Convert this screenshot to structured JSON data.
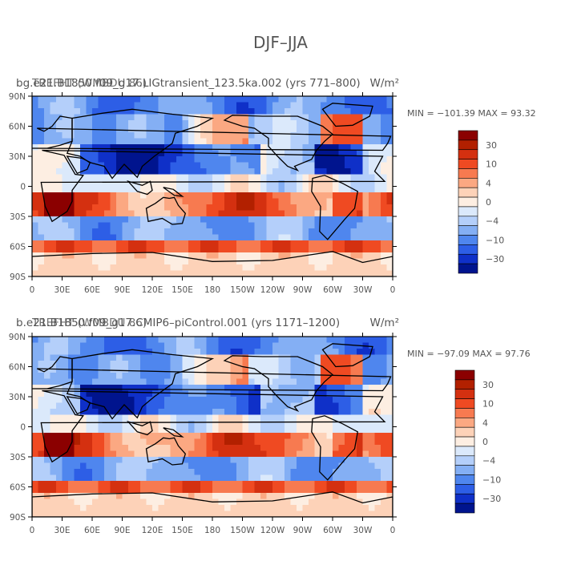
{
  "figure": {
    "title": "DJF–JJA"
  },
  "chart_data": [
    {
      "type": "heatmap",
      "subtitle_left_a": "bg.e21.B1850.f09_g17.LIGtransient_123.5ka.002 (yrs 771–800)",
      "subtitle_left_b": "TREFHT (WMBDU 86)",
      "subtitle_right": "W/m²",
      "stats": "MIN = −101.39  MAX =  93.32",
      "x_ticks": [
        "0",
        "30E",
        "60E",
        "90E",
        "120E",
        "150E",
        "180",
        "150W",
        "120W",
        "90W",
        "60W",
        "30W",
        "0"
      ],
      "y_ticks": [
        "90N",
        "60N",
        "30N",
        "0",
        "30S",
        "60S",
        "90S"
      ],
      "xlim": [
        0,
        360
      ],
      "ylim": [
        -90,
        90
      ],
      "colorbar_labels": [
        "30",
        "10",
        "4",
        "0",
        "−4",
        "−10",
        "−30"
      ],
      "colorbar_levels": [
        ">50",
        "30",
        "20",
        "10",
        "6",
        "4",
        "2",
        "0",
        "−2",
        "−4",
        "−6",
        "−10",
        "−20",
        "−30",
        "<−50"
      ]
    },
    {
      "type": "heatmap",
      "subtitle_left_a": "b.e21.B1850.f09_g17.CMIP6–piControl.001 (yrs 1171–1200)",
      "subtitle_left_b": "TREFHT (WMBDU 86)",
      "subtitle_right": "W/m²",
      "stats": "MIN = −97.09  MAX =  97.76",
      "x_ticks": [
        "0",
        "30E",
        "60E",
        "90E",
        "120E",
        "150E",
        "180",
        "150W",
        "120W",
        "90W",
        "60W",
        "30W",
        "0"
      ],
      "y_ticks": [
        "90N",
        "60N",
        "30N",
        "0",
        "30S",
        "60S",
        "90S"
      ],
      "xlim": [
        0,
        360
      ],
      "ylim": [
        -90,
        90
      ],
      "colorbar_labels": [
        "30",
        "10",
        "4",
        "0",
        "−4",
        "−10",
        "−30"
      ],
      "colorbar_levels": [
        ">50",
        "30",
        "20",
        "10",
        "6",
        "4",
        "2",
        "0",
        "−2",
        "−4",
        "−6",
        "−10",
        "−20",
        "−30",
        "<−50"
      ]
    }
  ],
  "colors": {
    "scale": [
      "#8b0000",
      "#b22000",
      "#d43010",
      "#ef4a22",
      "#f77a50",
      "#fba882",
      "#fdd2b8",
      "#fdeee2",
      "#dbe9fb",
      "#b4cffa",
      "#84aff4",
      "#4f86ee",
      "#2d5ee6",
      "#0f30c8",
      "#00148e"
    ],
    "axis": "#000000",
    "text": "#555555"
  }
}
